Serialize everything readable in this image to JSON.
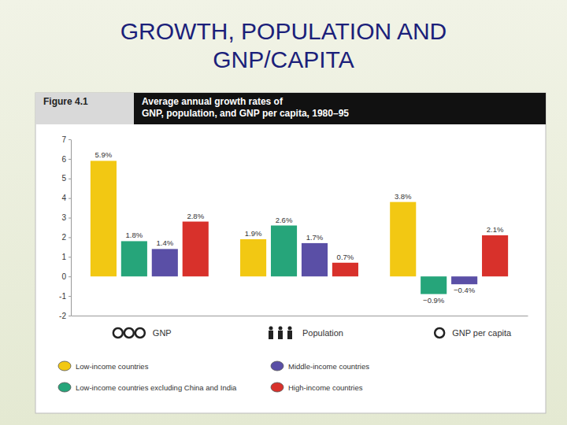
{
  "slide": {
    "title": "GROWTH, POPULATION AND GNP/CAPITA"
  },
  "chart_data": {
    "type": "bar",
    "figure_label": "Figure 4.1",
    "title": "Average annual growth rates of GNP, population, and GNP per capita, 1980–95",
    "categories": [
      "GNP",
      "Population",
      "GNP per capita"
    ],
    "series": [
      {
        "name": "Low-income countries",
        "color": "#f2c813",
        "values": [
          5.9,
          1.9,
          3.8
        ],
        "value_labels": [
          "5.9%",
          "1.9%",
          "3.8%"
        ]
      },
      {
        "name": "Low-income countries excluding China and India",
        "color": "#26a57a",
        "values": [
          1.8,
          2.6,
          -0.9
        ],
        "value_labels": [
          "1.8%",
          "2.6%",
          "−0.9%"
        ]
      },
      {
        "name": "Middle-income countries",
        "color": "#5a4fa6",
        "values": [
          1.4,
          1.7,
          -0.4
        ],
        "value_labels": [
          "1.4%",
          "1.7%",
          "−0.4%"
        ]
      },
      {
        "name": "High-income countries",
        "color": "#d8312b",
        "values": [
          2.8,
          0.7,
          2.1
        ],
        "value_labels": [
          "2.8%",
          "0.7%",
          "2.1%"
        ]
      }
    ],
    "ylim": [
      -2,
      7
    ],
    "yticks": [
      -2,
      -1,
      0,
      1,
      2,
      3,
      4,
      5,
      6,
      7
    ],
    "grid": false,
    "legend": "bottom",
    "data_labels": true
  }
}
